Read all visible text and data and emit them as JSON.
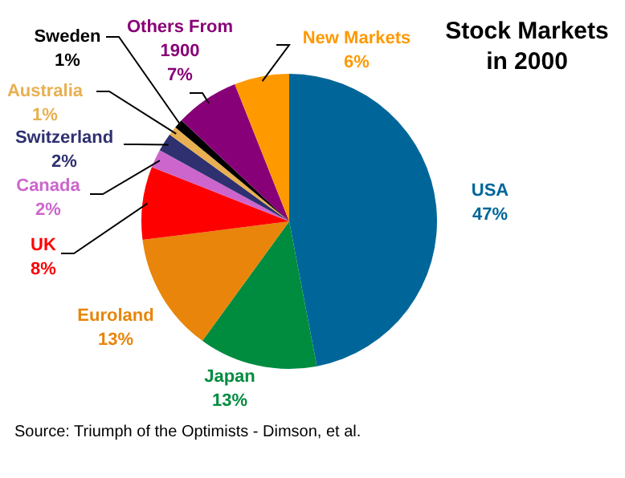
{
  "chart_data": {
    "type": "pie",
    "title": "Stock Markets in 2000",
    "categories": [
      "USA",
      "Japan",
      "Euroland",
      "UK",
      "Canada",
      "Switzerland",
      "Australia",
      "Sweden",
      "Others From 1900",
      "New Markets"
    ],
    "values": [
      47,
      13,
      13,
      8,
      2,
      2,
      1,
      1,
      7,
      6
    ],
    "value_labels": [
      "47%",
      "13%",
      "13%",
      "8%",
      "2%",
      "2%",
      "1%",
      "1%",
      "7%",
      "6%"
    ],
    "colors": [
      "#006699",
      "#008c3f",
      "#e8850a",
      "#ff0000",
      "#cc66cc",
      "#2e3070",
      "#e8b050",
      "#000000",
      "#880077",
      "#ff9900"
    ],
    "annotations": [
      "Source: Triumph of the Optimists - Dimson, et al."
    ]
  }
}
